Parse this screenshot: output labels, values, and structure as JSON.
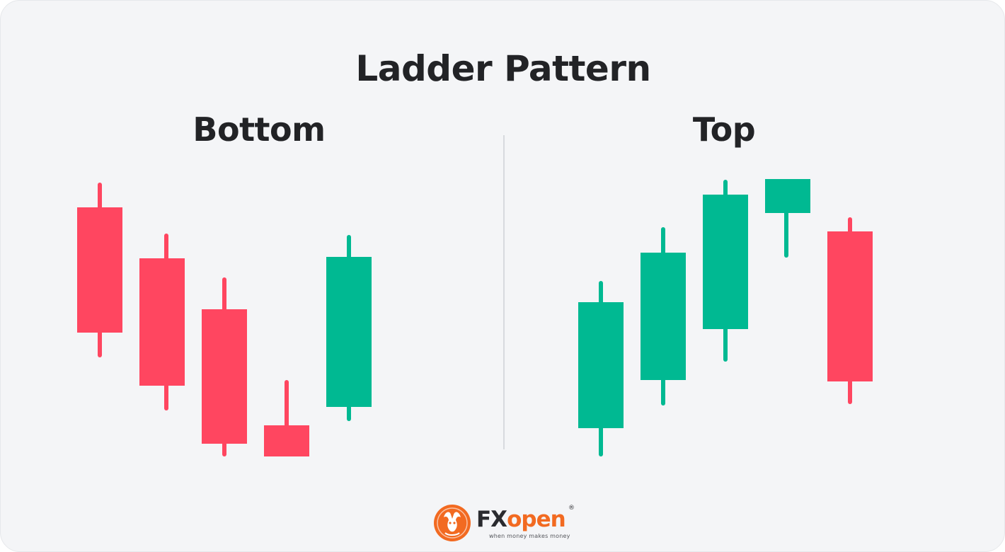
{
  "title": "Ladder Pattern",
  "panels": {
    "left": {
      "label": "Bottom"
    },
    "right": {
      "label": "Top"
    }
  },
  "colors": {
    "bearish": "#ff4660",
    "bullish": "#00b992",
    "text": "#222326",
    "background": "#f4f5f7",
    "brand": "#f26a21"
  },
  "logo": {
    "brand_prefix": "FX",
    "brand_suffix": "open",
    "registered": "®",
    "slogan": "when money makes money",
    "icon": "bull-emblem-icon"
  },
  "candles": {
    "bottom": [
      {
        "direction": "bearish",
        "open": 352,
        "close": 175,
        "high": 387,
        "low": 140
      },
      {
        "direction": "bearish",
        "open": 280,
        "close": 100,
        "high": 315,
        "low": 65
      },
      {
        "direction": "bearish",
        "open": 208,
        "close": 18,
        "high": 253,
        "low": 0
      },
      {
        "direction": "bearish",
        "open": 44,
        "close": 0,
        "high": 108,
        "low": 0
      },
      {
        "direction": "bullish",
        "open": 70,
        "close": 282,
        "high": 313,
        "low": 50
      }
    ],
    "top": [
      {
        "direction": "bullish",
        "open": 40,
        "close": 218,
        "high": 248,
        "low": 0
      },
      {
        "direction": "bullish",
        "open": 108,
        "close": 288,
        "high": 324,
        "low": 72
      },
      {
        "direction": "bullish",
        "open": 180,
        "close": 370,
        "high": 391,
        "low": 134
      },
      {
        "direction": "bullish",
        "open": 344,
        "close": 392,
        "high": 392,
        "low": 281
      },
      {
        "direction": "bearish",
        "open": 318,
        "close": 106,
        "high": 338,
        "low": 74
      }
    ]
  }
}
